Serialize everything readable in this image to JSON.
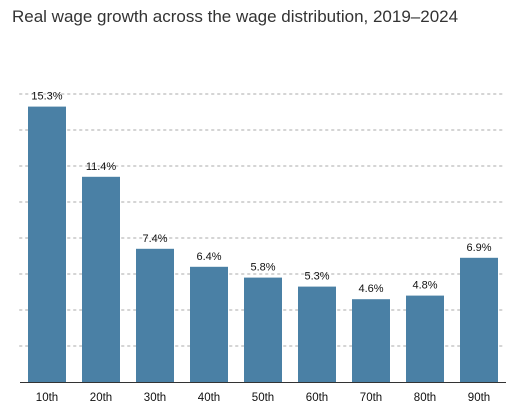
{
  "chart_data": {
    "type": "bar",
    "title": "Real wage growth across the wage distribution, 2019–2024",
    "xlabel": "",
    "ylabel": "",
    "categories": [
      "10th",
      "20th",
      "30th",
      "40th",
      "50th",
      "60th",
      "70th",
      "80th",
      "90th"
    ],
    "values": [
      15.3,
      11.4,
      7.4,
      6.4,
      5.8,
      5.3,
      4.6,
      4.8,
      6.9
    ],
    "value_labels": [
      "15.3%",
      "11.4%",
      "7.4%",
      "6.4%",
      "5.8%",
      "5.3%",
      "4.6%",
      "4.8%",
      "6.9%"
    ],
    "ylim": [
      0,
      18
    ],
    "y_gridlines": [
      2,
      4,
      6,
      8,
      10,
      12,
      14,
      16
    ],
    "grid": true,
    "grid_style": "dotted",
    "legend": "none",
    "colors": {
      "bar": "#4a80a5",
      "grid": "#d4d4d4",
      "axis": "#333333",
      "text": "#333333"
    }
  }
}
